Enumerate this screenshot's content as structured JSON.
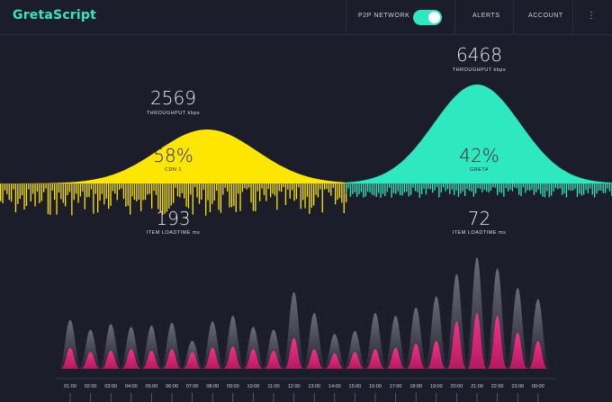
{
  "app": {
    "brand": "GretaScript"
  },
  "nav": {
    "p2p_label": "P2P NETWORK",
    "p2p_enabled": true,
    "alerts_label": "ALERTS",
    "account_label": "ACCOUNT",
    "menu_icon": "hamburger-menu-icon"
  },
  "colors": {
    "cdn": "#ffe600",
    "greta": "#2ee8c1",
    "peak": "#ff2f8e",
    "background": "#1b1d2a"
  },
  "cdn": {
    "throughput_value": "2569",
    "throughput_label": "THROUGHPUT kbps",
    "share_value": "58%",
    "share_label": "CDN 1",
    "loadtime_value": "193",
    "loadtime_label": "ITEM LOADTIME ms"
  },
  "greta": {
    "throughput_value": "6468",
    "throughput_label": "THROUGHPUT kbps",
    "share_value": "42%",
    "share_label": "GRETA",
    "loadtime_value": "72",
    "loadtime_label": "ITEM LOADTIME ms"
  },
  "chart_data": {
    "type": "area",
    "x": [
      "01:00",
      "02:00",
      "03:00",
      "04:00",
      "05:00",
      "06:00",
      "07:00",
      "08:00",
      "09:00",
      "10:00",
      "11:00",
      "12:00",
      "13:00",
      "14:00",
      "15:00",
      "16:00",
      "17:00",
      "18:00",
      "19:00",
      "20:00",
      "21:00",
      "22:00",
      "23:00",
      "00:00"
    ],
    "series": [
      {
        "values": [
          35,
          28,
          32,
          30,
          31,
          33,
          20,
          34,
          38,
          30,
          28,
          55,
          40,
          25,
          27,
          40,
          38,
          44,
          52,
          68,
          80,
          72,
          58,
          50
        ]
      },
      {
        "values": [
          15,
          12,
          13,
          14,
          13,
          14,
          12,
          15,
          16,
          14,
          13,
          22,
          14,
          11,
          12,
          14,
          15,
          18,
          20,
          34,
          40,
          38,
          26,
          20
        ]
      }
    ]
  }
}
